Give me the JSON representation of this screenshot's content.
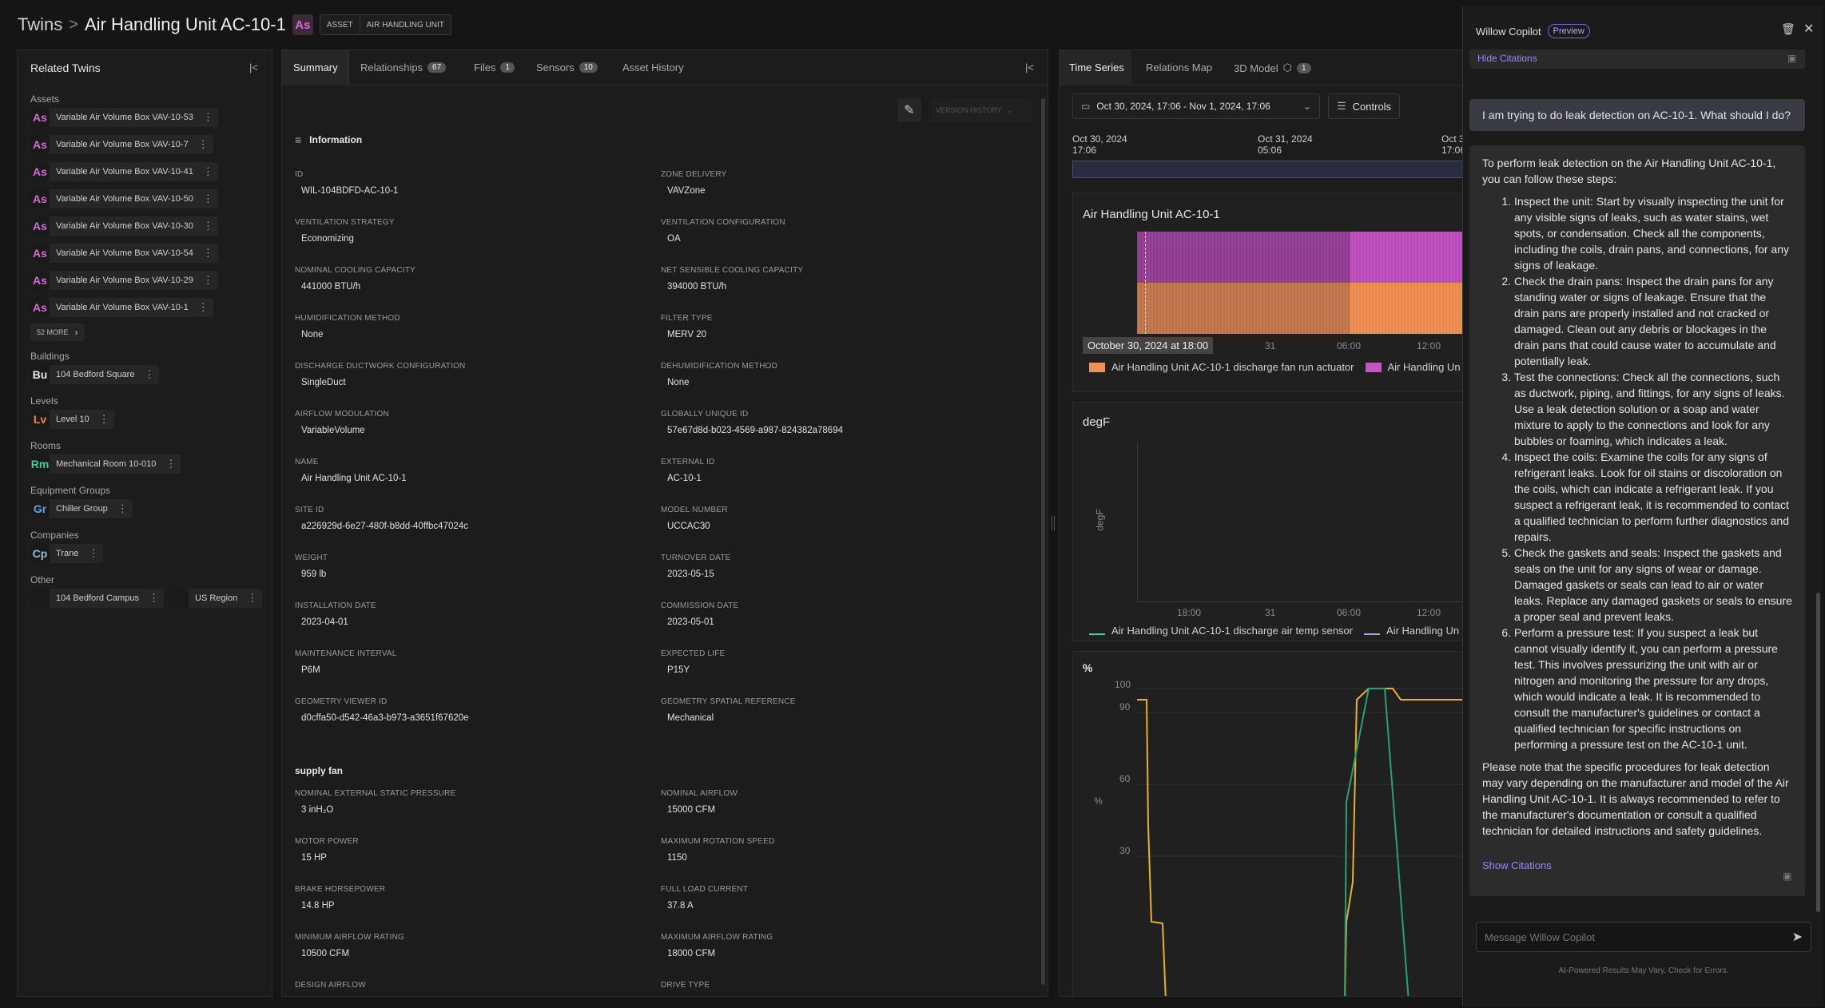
{
  "breadcrumb": {
    "root": "Twins",
    "separator": ">",
    "title": "Air Handling Unit AC-10-1",
    "badge": "As",
    "chips": [
      "ASSET",
      "AIR HANDLING UNIT"
    ]
  },
  "related": {
    "title": "Related Twins",
    "sections": [
      {
        "label": "Assets",
        "items": [
          {
            "code": "As",
            "name": "Variable Air Volume Box VAV-10-53"
          },
          {
            "code": "As",
            "name": "Variable Air Volume Box VAV-10-7"
          },
          {
            "code": "As",
            "name": "Variable Air Volume Box VAV-10-41"
          },
          {
            "code": "As",
            "name": "Variable Air Volume Box VAV-10-50"
          },
          {
            "code": "As",
            "name": "Variable Air Volume Box VAV-10-30"
          },
          {
            "code": "As",
            "name": "Variable Air Volume Box VAV-10-54"
          },
          {
            "code": "As",
            "name": "Variable Air Volume Box VAV-10-29"
          },
          {
            "code": "As",
            "name": "Variable Air Volume Box VAV-10-1"
          }
        ],
        "more": "52 MORE"
      },
      {
        "label": "Buildings",
        "items": [
          {
            "code": "Bu",
            "name": "104 Bedford Square"
          }
        ]
      },
      {
        "label": "Levels",
        "items": [
          {
            "code": "Lv",
            "name": "Level 10"
          }
        ]
      },
      {
        "label": "Rooms",
        "items": [
          {
            "code": "Rm",
            "name": "Mechanical Room 10-010"
          }
        ]
      },
      {
        "label": "Equipment Groups",
        "items": [
          {
            "code": "Gr",
            "name": "Chiller Group"
          }
        ]
      },
      {
        "label": "Companies",
        "items": [
          {
            "code": "Cp",
            "name": "Trane"
          }
        ]
      },
      {
        "label": "Other",
        "items": [
          {
            "code": "",
            "name": "104 Bedford Campus"
          },
          {
            "code": "",
            "name": "US Region"
          }
        ]
      }
    ]
  },
  "colors": {
    "As": "#d56bd5",
    "Bu": "#e8e8e8",
    "Lv": "#f08a3a",
    "Rm": "#3ad0a0",
    "Gr": "#6aa0e8",
    "Cp": "#9ab8d8"
  },
  "tabs": [
    {
      "label": "Summary",
      "count": ""
    },
    {
      "label": "Relationships",
      "count": "67"
    },
    {
      "label": "Files",
      "count": "1"
    },
    {
      "label": "Sensors",
      "count": "10"
    },
    {
      "label": "Asset History",
      "count": ""
    }
  ],
  "version_history": "VERSION HISTORY",
  "info_title": "Information",
  "fields_left": [
    {
      "label": "ID",
      "value": "WIL-104BDFD-AC-10-1"
    },
    {
      "label": "VENTILATION STRATEGY",
      "value": "Economizing"
    },
    {
      "label": "NOMINAL COOLING CAPACITY",
      "value": "441000 BTU/h"
    },
    {
      "label": "HUMIDIFICATION METHOD",
      "value": "None"
    },
    {
      "label": "DISCHARGE DUCTWORK CONFIGURATION",
      "value": "SingleDuct"
    },
    {
      "label": "AIRFLOW MODULATION",
      "value": "VariableVolume"
    },
    {
      "label": "NAME",
      "value": "Air Handling Unit AC-10-1"
    },
    {
      "label": "SITE ID",
      "value": "a226929d-6e27-480f-b8dd-40ffbc47024c"
    },
    {
      "label": "WEIGHT",
      "value": "959 lb"
    },
    {
      "label": "INSTALLATION DATE",
      "value": "2023-04-01"
    },
    {
      "label": "MAINTENANCE INTERVAL",
      "value": "P6M"
    },
    {
      "label": "GEOMETRY VIEWER ID",
      "value": "d0cffa50-d542-46a3-b973-a3651f67620e"
    }
  ],
  "fields_right": [
    {
      "label": "ZONE DELIVERY",
      "value": "VAVZone"
    },
    {
      "label": "VENTILATION CONFIGURATION",
      "value": "OA"
    },
    {
      "label": "NET SENSIBLE COOLING CAPACITY",
      "value": "394000 BTU/h"
    },
    {
      "label": "FILTER TYPE",
      "value": "MERV 20"
    },
    {
      "label": "DEHUMIDIFICATION METHOD",
      "value": "None"
    },
    {
      "label": "GLOBALLY UNIQUE ID",
      "value": "57e67d8d-b023-4569-a987-824382a78694"
    },
    {
      "label": "EXTERNAL ID",
      "value": "AC-10-1"
    },
    {
      "label": "MODEL NUMBER",
      "value": "UCCAC30"
    },
    {
      "label": "TURNOVER DATE",
      "value": "2023-05-15"
    },
    {
      "label": "COMMISSION DATE",
      "value": "2023-05-01"
    },
    {
      "label": "EXPECTED LIFE",
      "value": "P15Y"
    },
    {
      "label": "GEOMETRY SPATIAL REFERENCE",
      "value": "Mechanical"
    }
  ],
  "supply_title": "supply fan",
  "supply_left": [
    {
      "label": "NOMINAL EXTERNAL STATIC PRESSURE",
      "value": "3 inH₂O"
    },
    {
      "label": "MOTOR POWER",
      "value": "15 HP"
    },
    {
      "label": "BRAKE HORSEPOWER",
      "value": "14.8 HP"
    },
    {
      "label": "MINIMUM AIRFLOW RATING",
      "value": "10500 CFM"
    },
    {
      "label": "DESIGN AIRFLOW",
      "value": ""
    }
  ],
  "supply_right": [
    {
      "label": "NOMINAL AIRFLOW",
      "value": "15000 CFM"
    },
    {
      "label": "MAXIMUM ROTATION SPEED",
      "value": "1150"
    },
    {
      "label": "FULL LOAD CURRENT",
      "value": "37.8 A"
    },
    {
      "label": "MAXIMUM AIRFLOW RATING",
      "value": "18000 CFM"
    },
    {
      "label": "DRIVE TYPE",
      "value": ""
    }
  ],
  "ts": {
    "tabs": [
      {
        "label": "Time Series",
        "count": ""
      },
      {
        "label": "Relations Map",
        "count": ""
      },
      {
        "label": "3D Model",
        "count": "1"
      }
    ],
    "date_range": "Oct 30, 2024, 17:06 - Nov 1, 2024, 17:06",
    "controls": "Controls",
    "timeline": [
      {
        "date": "Oct 30, 2024",
        "time": "17:06"
      },
      {
        "date": "Oct 31, 2024",
        "time": "05:06"
      },
      {
        "date": "Oct 3",
        "time": "17:06"
      }
    ],
    "card1": {
      "title": "Air Handling Unit AC-10-1",
      "tooltip": "October 30, 2024 at 18:00",
      "ticks": [
        "31",
        "06:00",
        "12:00"
      ],
      "legend": [
        "Air Handling Unit AC-10-1 discharge fan run actuator",
        "Air Handling Un"
      ]
    },
    "card2": {
      "title": "degF",
      "ylabel": "degF",
      "ticks": [
        "18:00",
        "31",
        "06:00",
        "12:00"
      ],
      "legend": [
        "Air Handling Unit AC-10-1 discharge air temp sensor",
        "Air Handling Un"
      ]
    },
    "card3": {
      "title": "%",
      "ylabel": "%",
      "yticks": [
        "100",
        "90",
        "60",
        "30"
      ]
    }
  },
  "copilot": {
    "title": "Willow Copilot",
    "badge": "Preview",
    "hide_citations": "Hide Citations",
    "user_msg": "I am trying to do leak detection on AC-10-1. What should I do?",
    "intro": "To perform leak detection on the Air Handling Unit AC-10-1, you can follow these steps:",
    "steps": [
      "Inspect the unit: Start by visually inspecting the unit for any visible signs of leaks, such as water stains, wet spots, or condensation. Check all the components, including the coils, drain pans, and connections, for any signs of leakage.",
      "Check the drain pans: Inspect the drain pans for any standing water or signs of leakage. Ensure that the drain pans are properly installed and not cracked or damaged. Clean out any debris or blockages in the drain pans that could cause water to accumulate and potentially leak.",
      "Test the connections: Check all the connections, such as ductwork, piping, and fittings, for any signs of leaks. Use a leak detection solution or a soap and water mixture to apply to the connections and look for any bubbles or foaming, which indicates a leak.",
      "Inspect the coils: Examine the coils for any signs of refrigerant leaks. Look for oil stains or discoloration on the coils, which can indicate a refrigerant leak. If you suspect a refrigerant leak, it is recommended to contact a qualified technician to perform further diagnostics and repairs.",
      "Check the gaskets and seals: Inspect the gaskets and seals on the unit for any signs of wear or damage. Damaged gaskets or seals can lead to air or water leaks. Replace any damaged gaskets or seals to ensure a proper seal and prevent leaks.",
      "Perform a pressure test: If you suspect a leak but cannot visually identify it, you can perform a pressure test. This involves pressurizing the unit with air or nitrogen and monitoring the pressure for any drops, which would indicate a leak. It is recommended to consult the manufacturer's guidelines or contact a qualified technician for specific instructions on performing a pressure test on the AC-10-1 unit."
    ],
    "outro": "Please note that the specific procedures for leak detection may vary depending on the manufacturer and model of the Air Handling Unit AC-10-1. It is always recommended to refer to the manufacturer's documentation or consult a qualified technician for detailed instructions and safety guidelines.",
    "show_citations": "Show Citations",
    "placeholder": "Message Willow Copilot",
    "disclaimer": "AI-Powered Results May Vary. Check for Errors."
  }
}
